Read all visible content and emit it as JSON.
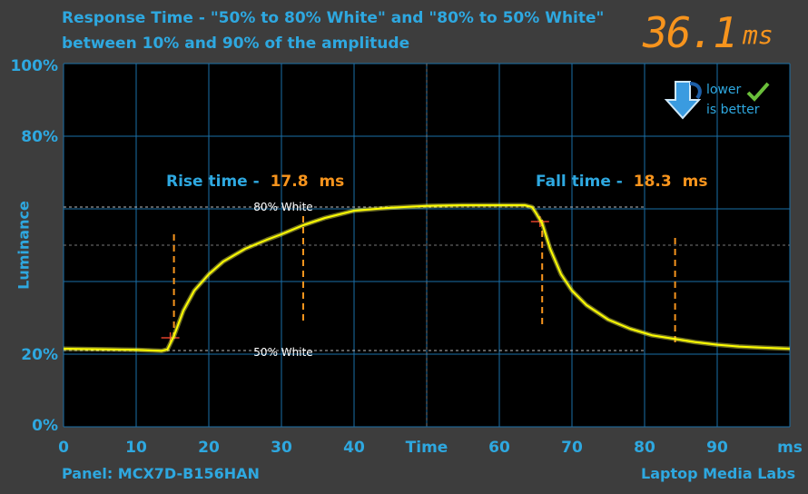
{
  "header": {
    "title_line1": "Response Time - \"50% to 80% White\" and \"80% to 50% White\"",
    "title_line2": "between 10% and 90% of the amplitude",
    "total_value": "36.1",
    "total_unit": "ms"
  },
  "badge": {
    "line1": "lower",
    "line2": "is better",
    "icon": "down-arrow-icon",
    "check": "checkmark-icon"
  },
  "footer": {
    "panel": "Panel: MCX7D-B156HAN",
    "brand": "Laptop Media Labs"
  },
  "colors": {
    "accent": "#2ea8e0",
    "highlight": "#f7941d",
    "signal": "#ffff00",
    "grid": "#1a6fa8"
  },
  "chart_data": {
    "type": "line",
    "xlabel": "Time",
    "xunit": "ms",
    "ylabel": "Luminance",
    "xlim": [
      0,
      100
    ],
    "ylim": [
      0,
      100
    ],
    "x_ticks": [
      "0",
      "10",
      "20",
      "30",
      "40",
      "Time",
      "60",
      "70",
      "80",
      "90",
      "ms"
    ],
    "y_ticks": [
      "0%",
      "20%",
      "80%",
      "100%"
    ],
    "annotations": {
      "rise_label": "Rise time -",
      "rise_value": "17.8",
      "rise_unit": "ms",
      "fall_label": "Fall time -",
      "fall_value": "18.3",
      "fall_unit": "ms",
      "upper_level": "80% White",
      "lower_level": "50% White",
      "rise_start": 15.2,
      "rise_end": 33,
      "fall_start": 65.9,
      "fall_end": 84.2
    },
    "levels": {
      "upper": 60.5,
      "lower": 21
    },
    "series": [
      {
        "x": [
          0,
          10,
          13.5,
          14.3,
          15.2,
          16.5,
          18,
          20,
          22,
          25,
          28,
          30,
          33,
          36,
          40,
          45,
          50,
          55,
          60,
          63.5,
          64.5,
          65,
          65.9,
          67,
          68.5,
          70,
          72,
          75,
          78,
          81,
          84.2,
          87,
          90,
          93,
          96,
          100
        ],
        "y": [
          21.5,
          21.2,
          20.9,
          21.3,
          25,
          32,
          37.5,
          42,
          45.5,
          49,
          51.5,
          53,
          55.5,
          57.5,
          59.5,
          60.3,
          60.8,
          61,
          61,
          61,
          60.5,
          59,
          56,
          49,
          42,
          37.5,
          33.5,
          29.5,
          27,
          25.2,
          24.2,
          23.3,
          22.6,
          22.1,
          21.8,
          21.5
        ]
      }
    ]
  }
}
